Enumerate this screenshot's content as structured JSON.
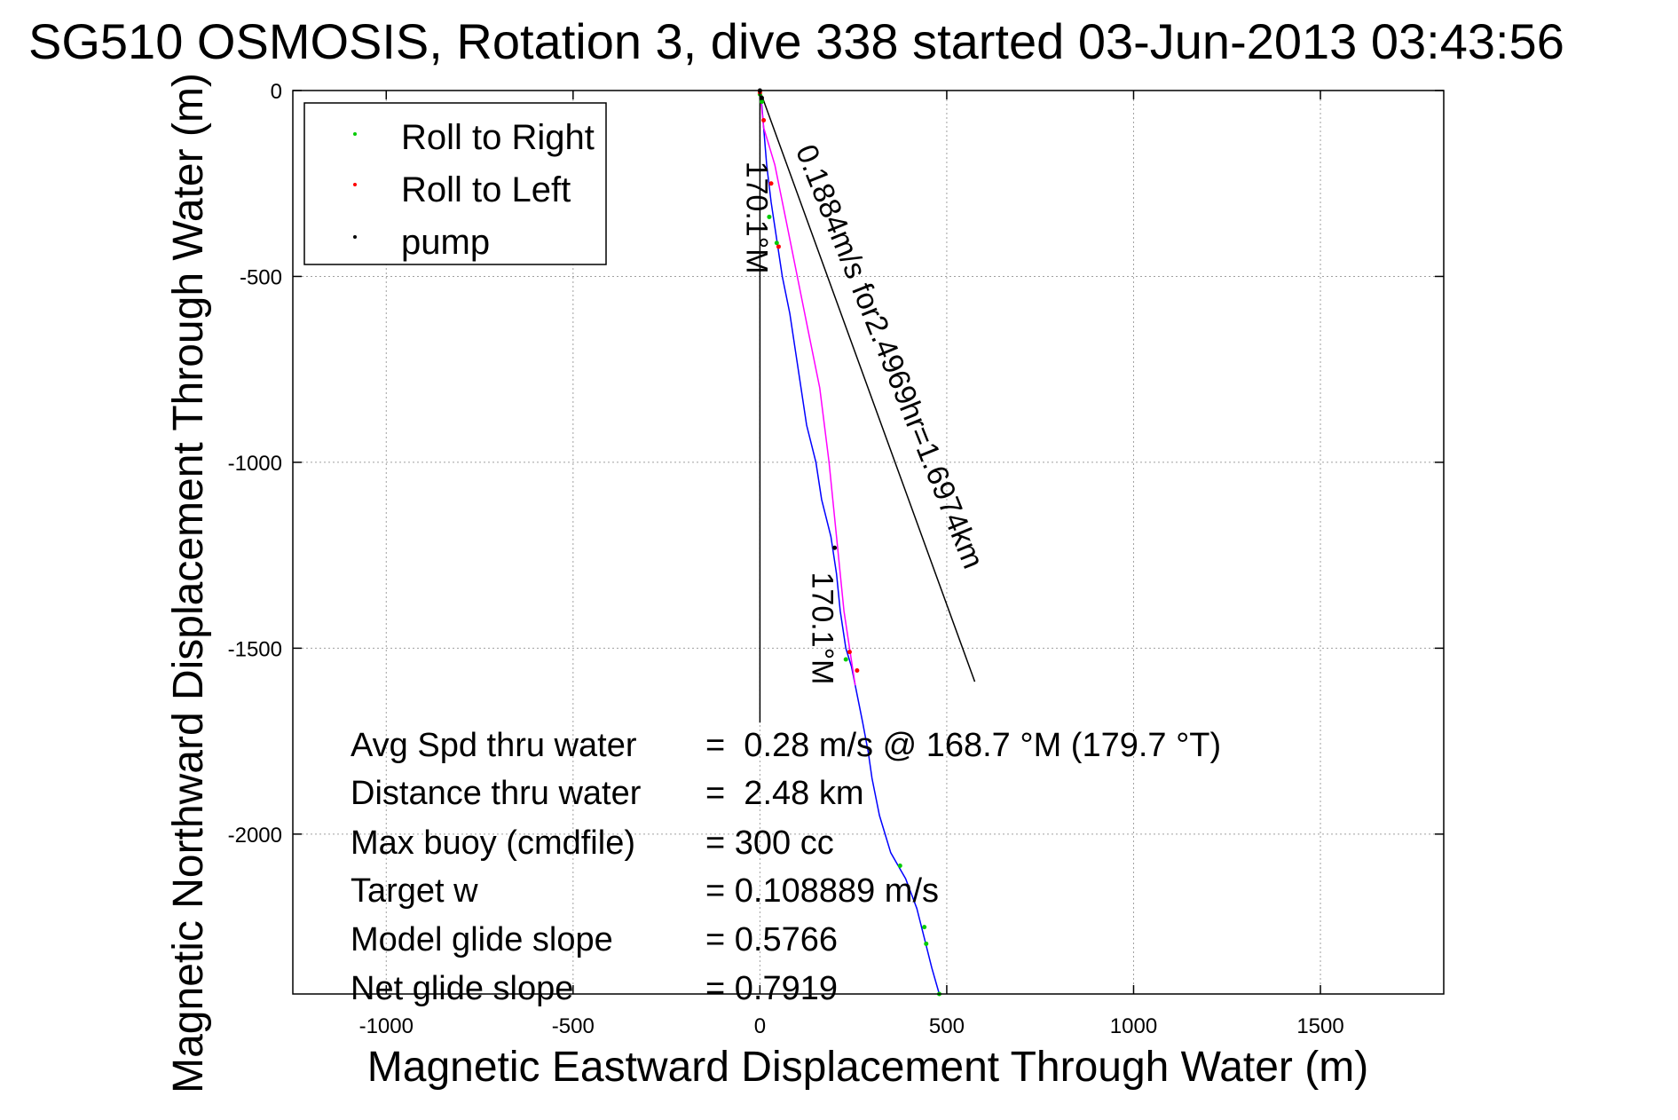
{
  "chart_data": {
    "type": "line",
    "title": "SG510 OSMOSIS, Rotation 3, dive 338 started 03-Jun-2013 03:43:56",
    "xlabel": "Magnetic Eastward Displacement Through Water (m)",
    "ylabel": "Magnetic Northward Displacement Through Water (m)",
    "xlim": [
      -1250,
      1830
    ],
    "ylim": [
      -2430,
      0
    ],
    "xticks": [
      -1000,
      -500,
      0,
      500,
      1000,
      1500
    ],
    "yticks": [
      0,
      -500,
      -1000,
      -1500,
      -2000
    ],
    "grid": true,
    "legend_position": "top-left",
    "legend": [
      {
        "label": "Roll to Right",
        "color": "#00cc00"
      },
      {
        "label": "Roll to Left",
        "color": "#ff0000"
      },
      {
        "label": "pump",
        "color": "#000000"
      }
    ],
    "series": [
      {
        "color": "#0000ff",
        "points": [
          [
            0,
            0
          ],
          [
            5,
            -40
          ],
          [
            10,
            -100
          ],
          [
            18,
            -200
          ],
          [
            30,
            -300
          ],
          [
            45,
            -400
          ],
          [
            60,
            -500
          ],
          [
            80,
            -600
          ],
          [
            95,
            -700
          ],
          [
            110,
            -800
          ],
          [
            125,
            -900
          ],
          [
            150,
            -1000
          ],
          [
            165,
            -1100
          ],
          [
            190,
            -1200
          ],
          [
            205,
            -1300
          ],
          [
            215,
            -1400
          ],
          [
            230,
            -1500
          ],
          [
            245,
            -1550
          ],
          [
            265,
            -1650
          ],
          [
            275,
            -1700
          ],
          [
            290,
            -1780
          ],
          [
            300,
            -1850
          ],
          [
            320,
            -1950
          ],
          [
            350,
            -2050
          ],
          [
            390,
            -2120
          ],
          [
            420,
            -2200
          ],
          [
            440,
            -2280
          ],
          [
            460,
            -2360
          ],
          [
            480,
            -2430
          ]
        ]
      },
      {
        "color": "#ff00ff",
        "points": [
          [
            0,
            0
          ],
          [
            10,
            -100
          ],
          [
            40,
            -200
          ],
          [
            70,
            -350
          ],
          [
            100,
            -500
          ],
          [
            130,
            -650
          ],
          [
            160,
            -800
          ],
          [
            185,
            -1000
          ],
          [
            205,
            -1200
          ],
          [
            225,
            -1400
          ],
          [
            240,
            -1500
          ],
          [
            255,
            -1600
          ]
        ]
      },
      {
        "color": "#000000",
        "points": [
          [
            0,
            0
          ],
          [
            575,
            -1590
          ]
        ]
      },
      {
        "color": "#000000",
        "points": [
          [
            0,
            0
          ],
          [
            0,
            -1700
          ]
        ]
      }
    ],
    "markers": {
      "roll_right": [
        [
          0,
          -10
        ],
        [
          5,
          -30
        ],
        [
          25,
          -340
        ],
        [
          45,
          -410
        ],
        [
          230,
          -1530
        ],
        [
          375,
          -2085
        ],
        [
          440,
          -2250
        ],
        [
          445,
          -2295
        ],
        [
          480,
          -2430
        ]
      ],
      "roll_left": [
        [
          0,
          -5
        ],
        [
          10,
          -80
        ],
        [
          30,
          -250
        ],
        [
          50,
          -420
        ],
        [
          240,
          -1510
        ],
        [
          260,
          -1560
        ]
      ],
      "pump": [
        [
          0,
          0
        ],
        [
          5,
          -20
        ],
        [
          200,
          -1230
        ]
      ]
    },
    "annotations": [
      {
        "text": "0.1884m/s for2.4969hr=1.6974km",
        "x": 95,
        "y": -160,
        "angle": 68
      },
      {
        "text": "170.1°M",
        "x": -35,
        "y": -190,
        "angle": 90
      },
      {
        "text": "170.1°M",
        "x": 140,
        "y": -1295,
        "angle": 90
      }
    ],
    "stats": {
      "labels": [
        "Avg Spd thru water",
        "Distance thru water",
        "Max buoy (cmdfile)",
        "Target w",
        "Model glide slope",
        "Net glide slope"
      ],
      "values": [
        "=  0.28 m/s @ 168.7 °M (179.7 °T)",
        "=  2.48 km",
        "= 300 cc",
        "= 0.108889 m/s",
        "= 0.5766",
        "= 0.7919"
      ]
    }
  }
}
